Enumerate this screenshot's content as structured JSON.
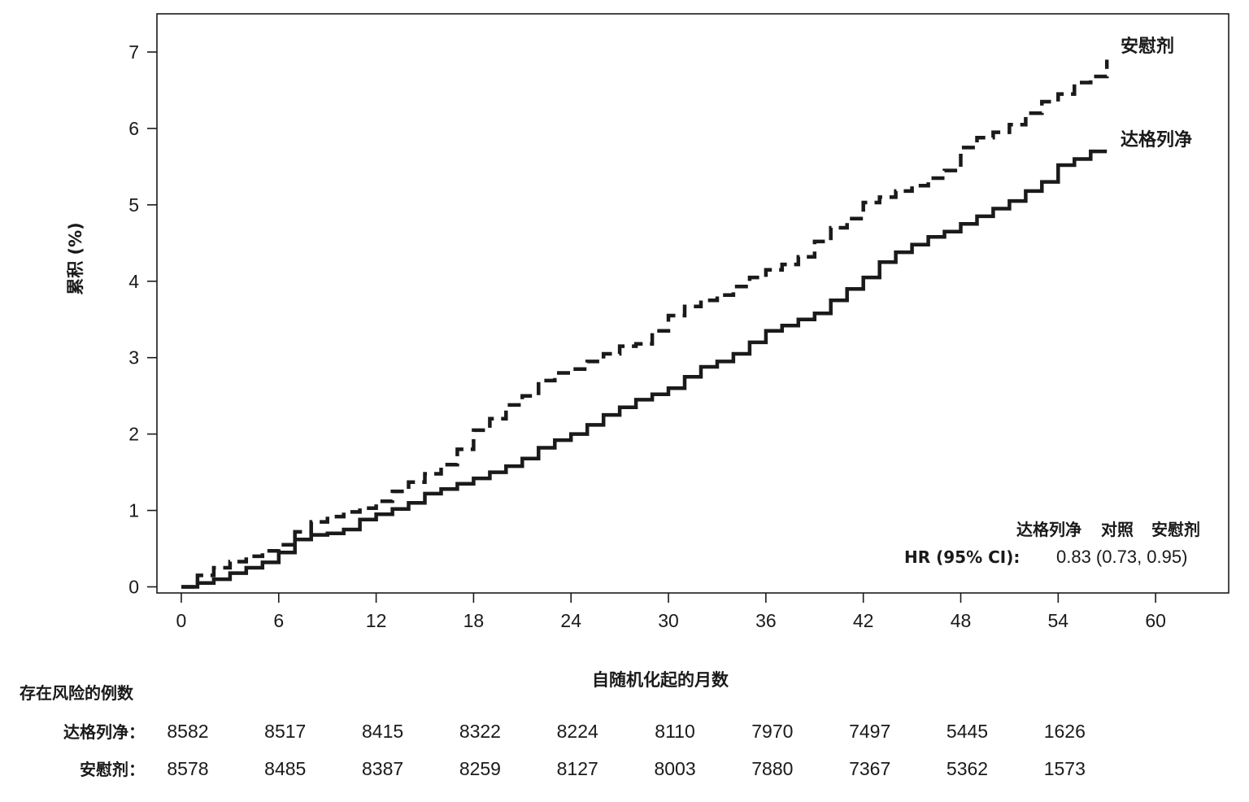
{
  "chart_data": {
    "type": "line",
    "xlabel": "自随机化起的月数",
    "ylabel": "累积 (%)",
    "xlim": [
      -1.5,
      64.5
    ],
    "ylim": [
      -0.08,
      7.5
    ],
    "x_ticks": [
      0,
      6,
      12,
      18,
      24,
      30,
      36,
      42,
      48,
      54,
      60
    ],
    "y_ticks": [
      0,
      1,
      2,
      3,
      4,
      5,
      6,
      7
    ],
    "legend_position": "end-of-lines (top-right)",
    "series": [
      {
        "name": "安慰剂",
        "line_style": "dashed",
        "color": "#1a1a1a",
        "points": [
          [
            0,
            0
          ],
          [
            1,
            0.15
          ],
          [
            2,
            0.25
          ],
          [
            3,
            0.33
          ],
          [
            4,
            0.4
          ],
          [
            5,
            0.47
          ],
          [
            6,
            0.55
          ],
          [
            7,
            0.72
          ],
          [
            8,
            0.85
          ],
          [
            9,
            0.92
          ],
          [
            10,
            0.98
          ],
          [
            11,
            1.03
          ],
          [
            12,
            1.12
          ],
          [
            13,
            1.25
          ],
          [
            14,
            1.37
          ],
          [
            15,
            1.48
          ],
          [
            16,
            1.6
          ],
          [
            17,
            1.8
          ],
          [
            18,
            2.05
          ],
          [
            19,
            2.2
          ],
          [
            20,
            2.38
          ],
          [
            21,
            2.5
          ],
          [
            22,
            2.7
          ],
          [
            23,
            2.8
          ],
          [
            24,
            2.85
          ],
          [
            25,
            2.95
          ],
          [
            26,
            3.05
          ],
          [
            27,
            3.15
          ],
          [
            28,
            3.18
          ],
          [
            29,
            3.35
          ],
          [
            30,
            3.55
          ],
          [
            31,
            3.67
          ],
          [
            32,
            3.75
          ],
          [
            33,
            3.82
          ],
          [
            34,
            3.93
          ],
          [
            35,
            4.05
          ],
          [
            36,
            4.15
          ],
          [
            37,
            4.22
          ],
          [
            38,
            4.32
          ],
          [
            39,
            4.52
          ],
          [
            40,
            4.7
          ],
          [
            41,
            4.82
          ],
          [
            42,
            5.03
          ],
          [
            43,
            5.1
          ],
          [
            44,
            5.18
          ],
          [
            45,
            5.25
          ],
          [
            46,
            5.35
          ],
          [
            47,
            5.45
          ],
          [
            48,
            5.75
          ],
          [
            49,
            5.88
          ],
          [
            50,
            5.95
          ],
          [
            51,
            6.05
          ],
          [
            52,
            6.2
          ],
          [
            53,
            6.35
          ],
          [
            54,
            6.45
          ],
          [
            55,
            6.6
          ],
          [
            56,
            6.68
          ],
          [
            57,
            6.9
          ]
        ]
      },
      {
        "name": "达格列净",
        "line_style": "solid",
        "color": "#1a1a1a",
        "points": [
          [
            0,
            0
          ],
          [
            1,
            0.05
          ],
          [
            2,
            0.1
          ],
          [
            3,
            0.18
          ],
          [
            4,
            0.25
          ],
          [
            5,
            0.32
          ],
          [
            6,
            0.45
          ],
          [
            7,
            0.62
          ],
          [
            8,
            0.68
          ],
          [
            9,
            0.7
          ],
          [
            10,
            0.75
          ],
          [
            11,
            0.88
          ],
          [
            12,
            0.95
          ],
          [
            13,
            1.02
          ],
          [
            14,
            1.1
          ],
          [
            15,
            1.22
          ],
          [
            16,
            1.28
          ],
          [
            17,
            1.35
          ],
          [
            18,
            1.42
          ],
          [
            19,
            1.5
          ],
          [
            20,
            1.58
          ],
          [
            21,
            1.68
          ],
          [
            22,
            1.82
          ],
          [
            23,
            1.92
          ],
          [
            24,
            2.0
          ],
          [
            25,
            2.12
          ],
          [
            26,
            2.25
          ],
          [
            27,
            2.35
          ],
          [
            28,
            2.45
          ],
          [
            29,
            2.52
          ],
          [
            30,
            2.6
          ],
          [
            31,
            2.75
          ],
          [
            32,
            2.88
          ],
          [
            33,
            2.95
          ],
          [
            34,
            3.05
          ],
          [
            35,
            3.2
          ],
          [
            36,
            3.35
          ],
          [
            37,
            3.42
          ],
          [
            38,
            3.5
          ],
          [
            39,
            3.58
          ],
          [
            40,
            3.75
          ],
          [
            41,
            3.9
          ],
          [
            42,
            4.05
          ],
          [
            43,
            4.25
          ],
          [
            44,
            4.38
          ],
          [
            45,
            4.48
          ],
          [
            46,
            4.58
          ],
          [
            47,
            4.65
          ],
          [
            48,
            4.75
          ],
          [
            49,
            4.85
          ],
          [
            50,
            4.95
          ],
          [
            51,
            5.05
          ],
          [
            52,
            5.18
          ],
          [
            53,
            5.3
          ],
          [
            54,
            5.52
          ],
          [
            55,
            5.6
          ],
          [
            56,
            5.7
          ],
          [
            57,
            5.7
          ]
        ]
      }
    ],
    "hr_box": {
      "header": [
        "达格列净",
        "对照",
        "安慰剂"
      ],
      "label": "HR (95% CI):",
      "value": "0.83 (0.73, 0.95)"
    },
    "risk_table": {
      "title": "存在风险的例数",
      "rows": [
        {
          "label": "达格列净：",
          "values": [
            "8582",
            "8517",
            "8415",
            "8322",
            "8224",
            "8110",
            "7970",
            "7497",
            "5445",
            "1626"
          ]
        },
        {
          "label": "安慰剂：",
          "values": [
            "8578",
            "8485",
            "8387",
            "8259",
            "8127",
            "8003",
            "7880",
            "7367",
            "5362",
            "1573"
          ]
        }
      ]
    }
  }
}
